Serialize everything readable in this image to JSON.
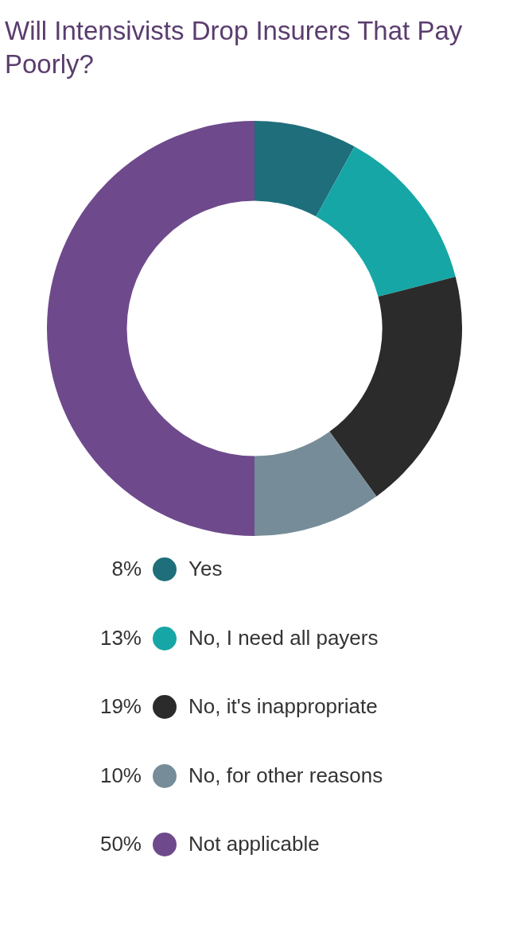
{
  "chart_data": {
    "type": "donut",
    "title": "Will Intensivists Drop Insurers That Pay Poorly?",
    "categories": [
      "Yes",
      "No, I need all payers",
      "No, it's inappropriate",
      "No, for other reasons",
      "Not applicable"
    ],
    "values": [
      8,
      13,
      19,
      10,
      50
    ],
    "colors": [
      "#1f6e7b",
      "#17a6a6",
      "#2b2b2b",
      "#768c99",
      "#6e4a8c"
    ],
    "value_labels": [
      "8%",
      "13%",
      "19%",
      "10%",
      "50%"
    ],
    "legend": "bottom"
  }
}
